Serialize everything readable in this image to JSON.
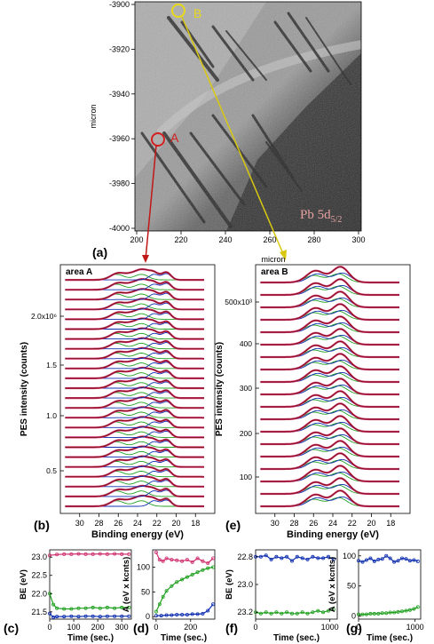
{
  "panel_labels": {
    "a": "(a)",
    "b": "(b)",
    "c": "(c)",
    "d": "(d)",
    "e": "(e)",
    "f": "(f)",
    "g": "(g)"
  },
  "map": {
    "ylabel": "micron",
    "xlabel": "micron",
    "x_ticks": [
      "200",
      "220",
      "240",
      "260",
      "280",
      "300"
    ],
    "y_ticks": [
      "-3900",
      "-3920",
      "-3940",
      "-3960",
      "-3980",
      "-4000"
    ],
    "marker_a": "A",
    "marker_b": "B",
    "marker_a_color": "#d42020",
    "marker_b_color": "#e8d81a",
    "pb_label": "Pb 5d",
    "pb_sub": "5/2",
    "pb_label_color": "#e6a0a0"
  },
  "spectra_common": {
    "xlabel": "Binding energy (eV)",
    "ylabel": "PES intensity (counts)",
    "x_ticks": [
      "30",
      "28",
      "26",
      "24",
      "22",
      "20",
      "18"
    ],
    "colors": {
      "data": "#7a1010",
      "fit": "#1030b0",
      "component": "#20a020",
      "envelope": "#d03070"
    }
  },
  "spectra_a": {
    "title": "area A",
    "y_ticks": [
      "2.0x10⁶",
      "1.5",
      "1.0",
      "0.5"
    ],
    "n_curves": 24
  },
  "spectra_b": {
    "title": "area B",
    "y_ticks": [
      "500x10³",
      "400",
      "300",
      "200",
      "100"
    ],
    "n_curves": 19
  },
  "chart_data": [
    {
      "panel": "c",
      "type": "line",
      "ylabel": "BE (eV)",
      "xlabel": "Time (sec.)",
      "x_ticks": [
        "0",
        "100",
        "200",
        "300"
      ],
      "y_ticks": [
        "23.0",
        "22.5",
        "22.0",
        "21.5"
      ],
      "xlim": [
        0,
        340
      ],
      "ylim": [
        21.3,
        23.2
      ],
      "series": [
        {
          "color": "#d03070",
          "x": [
            0,
            30,
            60,
            90,
            120,
            150,
            180,
            210,
            240,
            270,
            300,
            330
          ],
          "values": [
            23.05,
            23.07,
            23.08,
            23.08,
            23.09,
            23.08,
            23.08,
            23.09,
            23.08,
            23.09,
            23.08,
            23.08
          ]
        },
        {
          "color": "#20a020",
          "x": [
            0,
            15,
            30,
            60,
            90,
            120,
            150,
            180,
            210,
            240,
            270,
            300,
            330
          ],
          "values": [
            22.0,
            21.7,
            21.6,
            21.58,
            21.58,
            21.6,
            21.6,
            21.62,
            21.6,
            21.62,
            21.6,
            21.62,
            21.62
          ]
        },
        {
          "color": "#1030b0",
          "x": [
            0,
            15,
            30,
            60,
            90,
            120,
            150,
            180,
            210,
            240,
            270,
            300,
            330
          ],
          "values": [
            21.45,
            21.35,
            21.37,
            21.37,
            21.38,
            21.37,
            21.38,
            21.38,
            21.37,
            21.38,
            21.38,
            21.38,
            21.38
          ]
        }
      ]
    },
    {
      "panel": "d",
      "type": "line",
      "ylabel": "A (eV x kcnts)",
      "xlabel": "Time (sec.)",
      "x_ticks": [
        "0",
        "200"
      ],
      "y_ticks": [
        "100",
        "50",
        "0"
      ],
      "xlim": [
        -20,
        340
      ],
      "ylim": [
        -5,
        135
      ],
      "series": [
        {
          "color": "#d03070",
          "x": [
            0,
            20,
            40,
            60,
            90,
            120,
            150,
            180,
            210,
            240,
            270,
            300,
            330
          ],
          "values": [
            130,
            115,
            112,
            118,
            115,
            114,
            112,
            115,
            110,
            118,
            112,
            108,
            118
          ]
        },
        {
          "color": "#20a020",
          "x": [
            0,
            20,
            40,
            60,
            90,
            120,
            150,
            180,
            210,
            240,
            270,
            300,
            330
          ],
          "values": [
            10,
            25,
            40,
            52,
            62,
            70,
            75,
            80,
            85,
            90,
            94,
            98,
            100
          ]
        },
        {
          "color": "#1030b0",
          "x": [
            0,
            30,
            60,
            90,
            120,
            150,
            180,
            210,
            240,
            270,
            300,
            330
          ],
          "values": [
            2,
            2,
            3,
            3,
            4,
            4,
            4,
            5,
            5,
            6,
            12,
            25
          ]
        }
      ]
    },
    {
      "panel": "f",
      "type": "line",
      "ylabel": "BE (eV)",
      "xlabel": "Time (sec.)",
      "x_ticks": [
        "0",
        "1000"
      ],
      "y_ticks": [
        "22.8",
        "23.0",
        "23.2"
      ],
      "xlim": [
        0,
        1100
      ],
      "ylim": [
        23.25,
        22.75
      ],
      "series": [
        {
          "color": "#1030b0",
          "x": [
            0,
            70,
            140,
            210,
            280,
            350,
            420,
            490,
            560,
            630,
            700,
            770,
            840,
            910,
            980,
            1050
          ],
          "values": [
            22.8,
            22.8,
            22.79,
            22.82,
            22.8,
            22.81,
            22.8,
            22.83,
            22.8,
            22.81,
            22.82,
            22.8,
            22.81,
            22.81,
            22.8,
            22.82
          ]
        },
        {
          "color": "#20a020",
          "x": [
            0,
            70,
            140,
            210,
            280,
            350,
            420,
            490,
            560,
            630,
            700,
            770,
            840,
            910,
            980,
            1050
          ],
          "values": [
            23.2,
            23.21,
            23.2,
            23.21,
            23.2,
            23.21,
            23.2,
            23.21,
            23.21,
            23.2,
            23.21,
            23.2,
            23.19,
            23.2,
            23.19,
            23.18
          ]
        }
      ]
    },
    {
      "panel": "g",
      "type": "line",
      "ylabel": "A (eV x kcnts)",
      "xlabel": "Time (sec.)",
      "x_ticks": [
        "0",
        "1000"
      ],
      "y_ticks": [
        "100",
        "50",
        "0"
      ],
      "xlim": [
        0,
        1100
      ],
      "ylim": [
        -5,
        110
      ],
      "series": [
        {
          "color": "#1030b0",
          "x": [
            0,
            70,
            140,
            210,
            280,
            350,
            420,
            490,
            560,
            630,
            700,
            770,
            840,
            910,
            980,
            1050
          ],
          "values": [
            92,
            90,
            93,
            96,
            91,
            94,
            95,
            100,
            96,
            90,
            92,
            96,
            95,
            92,
            93,
            91
          ]
        },
        {
          "color": "#20a020",
          "x": [
            0,
            70,
            140,
            210,
            280,
            350,
            420,
            490,
            560,
            630,
            700,
            770,
            840,
            910,
            980,
            1050
          ],
          "values": [
            3,
            3,
            3,
            4,
            4,
            4,
            5,
            5,
            6,
            6,
            7,
            8,
            9,
            10,
            12,
            15
          ]
        }
      ]
    }
  ]
}
